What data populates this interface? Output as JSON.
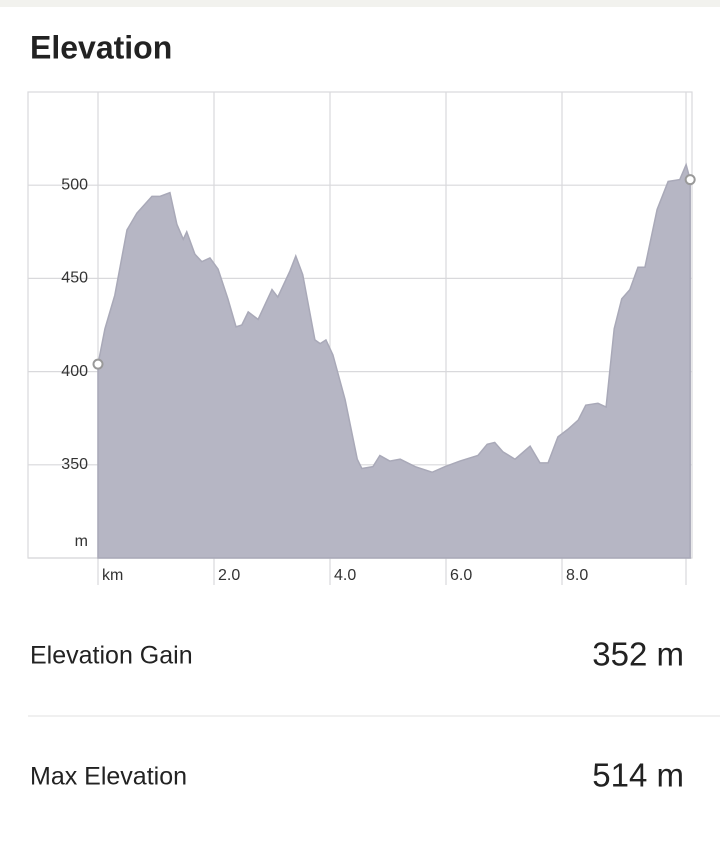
{
  "chart_data": {
    "type": "area",
    "title": "Elevation",
    "x": [
      0,
      0.12,
      0.29,
      0.5,
      0.67,
      0.93,
      1.07,
      1.24,
      1.36,
      1.47,
      1.53,
      1.67,
      1.79,
      1.93,
      2.07,
      2.24,
      2.38,
      2.48,
      2.59,
      2.76,
      3.0,
      3.1,
      3.31,
      3.41,
      3.53,
      3.74,
      3.83,
      3.93,
      4.05,
      4.26,
      4.47,
      4.55,
      4.74,
      4.86,
      5.03,
      5.21,
      5.47,
      5.76,
      5.98,
      6.24,
      6.55,
      6.71,
      6.84,
      6.98,
      7.19,
      7.45,
      7.62,
      7.76,
      7.93,
      8.1,
      8.28,
      8.41,
      8.62,
      8.76,
      8.9,
      9.03,
      9.17,
      9.31,
      9.43,
      9.64,
      9.83,
      10.03,
      10.14,
      10.21
    ],
    "series": [
      {
        "color": "#b6b6c4",
        "values": [
          404,
          423,
          441,
          476,
          485,
          494,
          494,
          496,
          479,
          471,
          475,
          463,
          459,
          461,
          455,
          439,
          424,
          425,
          432,
          428,
          444,
          440,
          454,
          462,
          452,
          417,
          415,
          417,
          409,
          385,
          353,
          348,
          349,
          355,
          352,
          353,
          349,
          346,
          349,
          352,
          355,
          361,
          362,
          357,
          353,
          360,
          351,
          351,
          365,
          369,
          374,
          382,
          383,
          381,
          423,
          439,
          444,
          456,
          456,
          487,
          502,
          503,
          511,
          503
        ]
      }
    ],
    "xlim": [
      0,
      10.2
    ],
    "xticks": [
      {
        "value": 0,
        "label": "km"
      },
      {
        "value": 2,
        "label": "2.0"
      },
      {
        "value": 4,
        "label": "4.0"
      },
      {
        "value": 6,
        "label": "6.0"
      },
      {
        "value": 8,
        "label": "8.0"
      }
    ],
    "ylim": [
      300,
      550
    ],
    "yticks": [
      {
        "value": 300,
        "label": "m"
      },
      350,
      400,
      450,
      500
    ],
    "grid": true
  },
  "stats": [
    {
      "label": "Elevation Gain",
      "value": "352 m"
    },
    {
      "label": "Max Elevation",
      "value": "514 m"
    }
  ]
}
